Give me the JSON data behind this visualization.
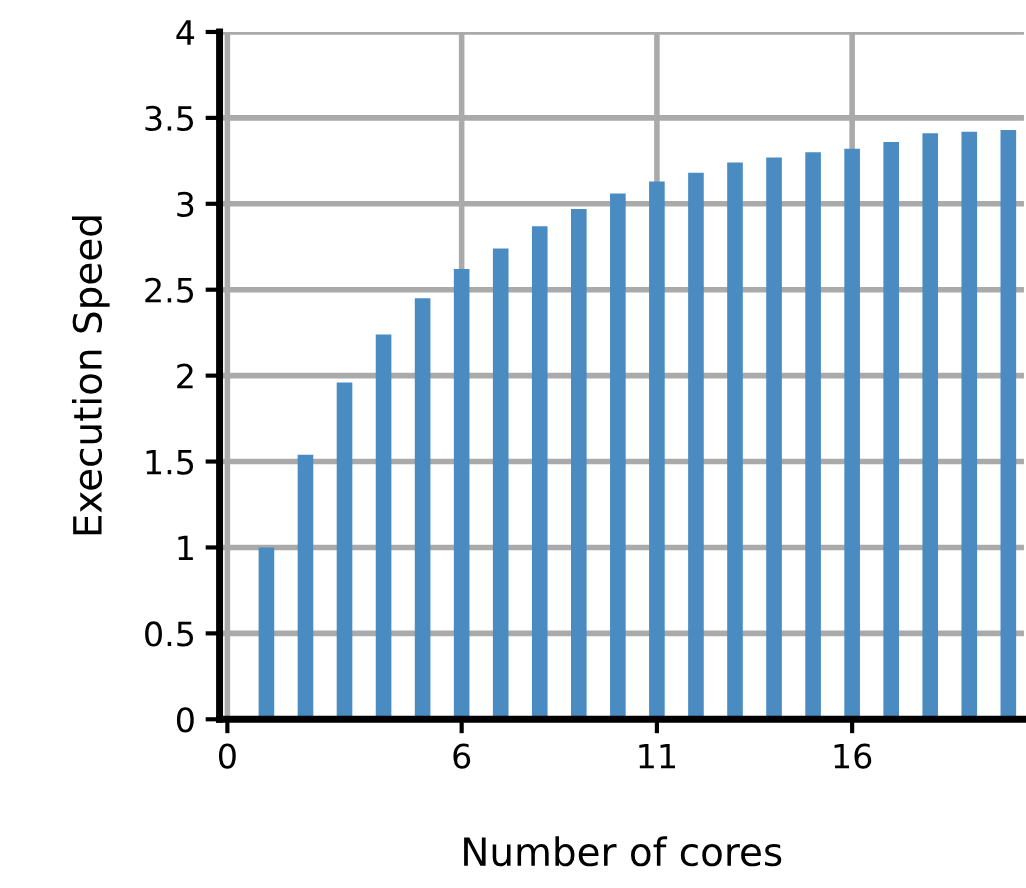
{
  "chart_data": {
    "type": "bar",
    "xlabel": "Number of cores",
    "ylabel": "Execution Speed",
    "x": [
      1,
      2,
      3,
      4,
      5,
      6,
      7,
      8,
      9,
      10,
      11,
      12,
      13,
      14,
      15,
      16,
      17,
      18,
      19,
      20
    ],
    "values": [
      1.0,
      1.54,
      1.96,
      2.24,
      2.45,
      2.62,
      2.74,
      2.87,
      2.97,
      3.06,
      3.13,
      3.18,
      3.24,
      3.27,
      3.3,
      3.32,
      3.36,
      3.41,
      3.42,
      3.43
    ],
    "color": "#4a8bc2",
    "xlim": [
      -0.2,
      20.4
    ],
    "xticks": [
      0,
      6,
      11,
      16
    ],
    "ylim": [
      0,
      4
    ],
    "yticks": [
      0,
      0.5,
      1,
      1.5,
      2,
      2.5,
      3,
      3.5,
      4
    ],
    "grid": true
  }
}
